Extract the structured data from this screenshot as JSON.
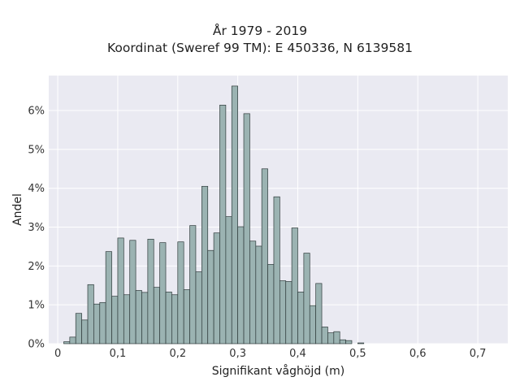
{
  "chart_data": {
    "type": "bar",
    "title": "År 1979 - 2019",
    "subtitle": "Koordinat (Sweref 99 TM): E 450336, N 6139581",
    "xlabel": "Signifikant våghöjd (m)",
    "ylabel": "Andel",
    "x_ticks": [
      "0",
      "0,1",
      "0,2",
      "0,3",
      "0,4",
      "0,5",
      "0,6",
      "0,7"
    ],
    "y_ticks": [
      "0%",
      "1%",
      "2%",
      "3%",
      "4%",
      "5%",
      "6%"
    ],
    "xlim": [
      -0.015,
      0.75
    ],
    "ylim": [
      0,
      0.069
    ],
    "bin_width": 0.01,
    "bin_start": 0.01,
    "values": [
      0.0005,
      0.0017,
      0.0078,
      0.0061,
      0.0152,
      0.0102,
      0.0106,
      0.0237,
      0.0122,
      0.0272,
      0.0126,
      0.0266,
      0.0137,
      0.0132,
      0.0269,
      0.0145,
      0.026,
      0.0133,
      0.0126,
      0.0262,
      0.0139,
      0.0304,
      0.0185,
      0.0405,
      0.024,
      0.0285,
      0.0614,
      0.0327,
      0.0663,
      0.0301,
      0.0592,
      0.0264,
      0.0251,
      0.045,
      0.0204,
      0.0378,
      0.0162,
      0.016,
      0.0298,
      0.0133,
      0.0233,
      0.0098,
      0.0155,
      0.0043,
      0.0028,
      0.0031,
      0.001,
      0.0008,
      0,
      0.0002
    ],
    "grid": true,
    "colors": {
      "bar_fill": "#9bb3b2",
      "bar_edge": "#2f3b3b",
      "plot_bg": "#eaeaf2",
      "grid": "#ffffff"
    }
  }
}
